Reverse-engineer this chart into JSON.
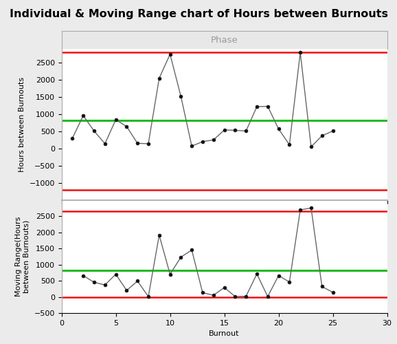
{
  "title": "Individual & Moving Range chart of Hours between Burnouts",
  "xlabel": "Burnout",
  "ylabel_i": "Hours between Burnouts",
  "ylabel_mr": "Moving Range(Hours\nbetween Burnouts)",
  "phase_label": "Phase",
  "x": [
    1,
    2,
    3,
    4,
    5,
    6,
    7,
    8,
    9,
    10,
    11,
    12,
    13,
    14,
    15,
    16,
    17,
    18,
    19,
    20,
    21,
    22,
    23,
    24,
    25
  ],
  "individual": [
    300,
    960,
    510,
    140,
    840,
    640,
    150,
    140,
    2050,
    2750,
    1520,
    70,
    200,
    250,
    540,
    530,
    510,
    1220,
    1230,
    570,
    110,
    2800,
    50,
    370,
    510
  ],
  "mr": [
    660,
    450,
    370,
    700,
    200,
    490,
    10,
    1910,
    700,
    1230,
    1450,
    130,
    50,
    290,
    10,
    20,
    710,
    10,
    660,
    460,
    2690,
    2750,
    320,
    140
  ],
  "mr_x": [
    2,
    3,
    4,
    5,
    6,
    7,
    8,
    9,
    10,
    11,
    12,
    13,
    14,
    15,
    16,
    17,
    18,
    19,
    20,
    21,
    22,
    23,
    24,
    25
  ],
  "i_ucl": 2800,
  "i_cl": 810,
  "i_lcl": -1200,
  "mr_ucl": 2650,
  "mr_cl": 810,
  "mr_lcl": 0,
  "ucl_color": "#ee1111",
  "cl_color": "#22bb22",
  "lcl_color_i": "#ee1111",
  "lcl_color_mr": "#ee1111",
  "line_color": "#666666",
  "marker_color": "#111111",
  "phase_bg": "#e8e8e8",
  "phase_text_color": "#999999",
  "separator_color": "#aaaaaa",
  "bg_color": "#ebebeb",
  "plot_bg": "#ffffff",
  "xlim": [
    0,
    30
  ],
  "i_ylim": [
    -1500,
    2900
  ],
  "mr_ylim": [
    -500,
    3000
  ],
  "title_fontsize": 11.5,
  "label_fontsize": 8,
  "tick_fontsize": 8,
  "phase_fontsize": 9.5
}
